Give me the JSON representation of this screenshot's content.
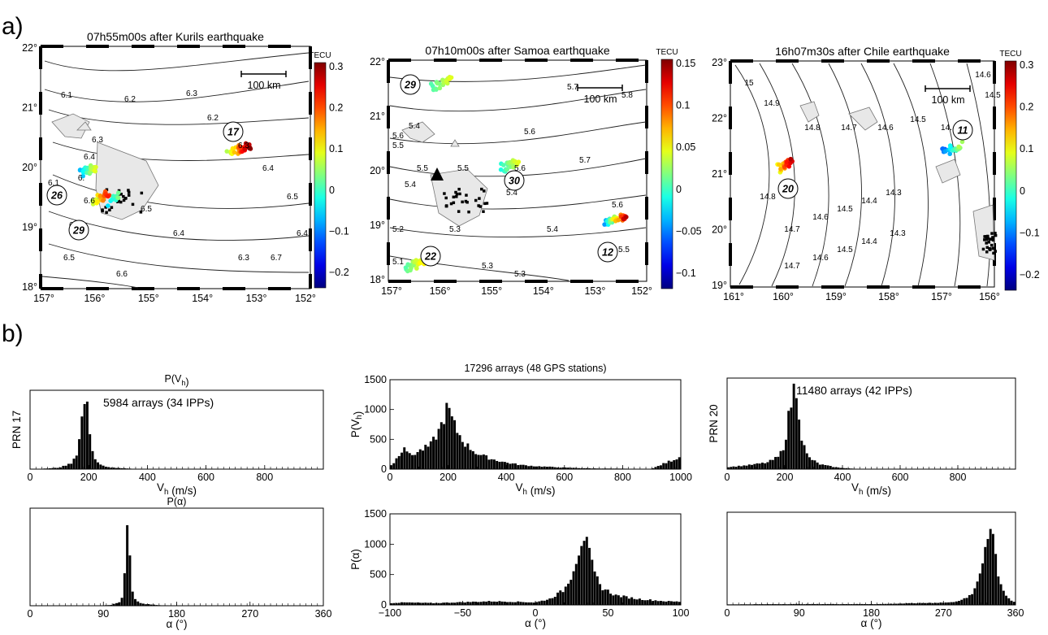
{
  "panel_labels": {
    "a": "a)",
    "b": "b)"
  },
  "maps": [
    {
      "title": "07h55m00s after Kurils earthquake",
      "scale_label": "100 km",
      "colorbar": {
        "label": "TECU",
        "ticks": [
          "0.3",
          "0.2",
          "0.1",
          "0",
          "−0.1",
          "−0.2"
        ]
      },
      "x_ticks": [
        "157°",
        "156°",
        "155°",
        "154°",
        "153°",
        "152°"
      ],
      "y_ticks": [
        "22°",
        "21°",
        "20°",
        "19°",
        "18°"
      ],
      "contour_labels": [
        "6.1",
        "6.2",
        "6.3",
        "6.2",
        "6.3",
        "6.4",
        "6.5",
        "6.4",
        "6.3",
        "6.4",
        "6.5",
        "6.6",
        "6.6",
        "6.5",
        "6.6",
        "6.7",
        "6.3",
        "6.4",
        "6.",
        "6.1"
      ],
      "prn_labels": [
        "17",
        "26",
        "29"
      ]
    },
    {
      "title": "07h10m00s after Samoa earthquake",
      "scale_label": "100 km",
      "colorbar": {
        "label": "TECU",
        "ticks": [
          "0.15",
          "0.1",
          "0.05",
          "0",
          "−0.05",
          "−0.1"
        ]
      },
      "x_ticks": [
        "157°",
        "156°",
        "155°",
        "154°",
        "153°",
        "152°"
      ],
      "y_ticks": [
        "22°",
        "21°",
        "20°",
        "19°",
        "18°"
      ],
      "contour_labels": [
        "5.7",
        "5.8",
        "5.6",
        "5.7",
        "5.6",
        "5.5",
        "5.6",
        "5.4",
        "5.5",
        "5.4",
        "5.5",
        "5.3",
        "5.4",
        "5.3",
        "5.2",
        "5.1",
        "5.3",
        "5.6",
        "5.5",
        "5.4"
      ],
      "prn_labels": [
        "29",
        "30",
        "12",
        "22"
      ]
    },
    {
      "title": "16h07m30s after Chile earthquake",
      "scale_label": "100 km",
      "colorbar": {
        "label": "TECU",
        "ticks": [
          "0.3",
          "0.2",
          "0.1",
          "0",
          "−0.1",
          "−0.2"
        ]
      },
      "x_ticks": [
        "161°",
        "160°",
        "159°",
        "158°",
        "157°",
        "156°"
      ],
      "y_ticks": [
        "23°",
        "22°",
        "21°",
        "20°",
        "19°"
      ],
      "contour_labels": [
        "15",
        "14.9",
        "14.8",
        "14.7",
        "14.6",
        "14.5",
        "14.4",
        "14.3",
        "14.7",
        "14.6",
        "14.5",
        "14.4",
        "14.3",
        "14.8",
        "14.7",
        "14.6",
        "14.5",
        "14.",
        "14.6",
        "14.5"
      ],
      "prn_labels": [
        "11",
        "20"
      ]
    }
  ],
  "b_texts": {
    "left_title": "P(V_h)",
    "left_ylabel": "PRN 17",
    "left_annotation": "5984 arrays (34 IPPs)",
    "left_alpha_title": "P(α)",
    "mid_title": "17296 arrays (48 GPS stations)",
    "right_ylabel": "PRN 20",
    "right_annotation": "11480 arrays (42 IPPs)",
    "vh_label": "V_h (m/s)",
    "alpha_label": "α (°)",
    "mid_vh_ylabel": "P(V_h)",
    "mid_alpha_ylabel": "P(α)"
  },
  "chart_data": [
    {
      "type": "bar",
      "title": "P(V_h)",
      "ylabel": "PRN 17",
      "xlabel": "V_h (m/s)",
      "annotation": "5984 arrays (34 IPPs)",
      "xlim": [
        0,
        1000
      ],
      "x_ticks": [
        0,
        200,
        400,
        600,
        800
      ],
      "y_ticks": [],
      "x": [
        100,
        140,
        160,
        170,
        180,
        190,
        200,
        210,
        220,
        240,
        260,
        300,
        350
      ],
      "values": [
        0.02,
        0.08,
        0.22,
        0.45,
        0.8,
        1.0,
        0.7,
        0.35,
        0.15,
        0.06,
        0.03,
        0.015,
        0.005
      ]
    },
    {
      "type": "bar",
      "title": "17296 arrays (48 GPS stations)",
      "ylabel": "P(V_h)",
      "xlabel": "V_h (m/s)",
      "xlim": [
        0,
        1000
      ],
      "ylim": [
        0,
        1500
      ],
      "x_ticks": [
        0,
        200,
        400,
        600,
        800,
        1000
      ],
      "y_ticks": [
        0,
        500,
        1000,
        1500
      ],
      "x": [
        10,
        30,
        50,
        70,
        100,
        140,
        170,
        190,
        200,
        210,
        230,
        260,
        300,
        350,
        400,
        450,
        500,
        600,
        700,
        800,
        900,
        995
      ],
      "values": [
        80,
        230,
        400,
        220,
        300,
        400,
        650,
        920,
        1060,
        870,
        650,
        420,
        260,
        170,
        110,
        70,
        50,
        25,
        12,
        8,
        5,
        200
      ]
    },
    {
      "type": "bar",
      "ylabel": "PRN 20",
      "xlabel": "V_h (m/s)",
      "annotation": "11480 arrays (42 IPPs)",
      "xlim": [
        0,
        1000
      ],
      "x_ticks": [
        0,
        200,
        400,
        600,
        800
      ],
      "y_ticks": [],
      "x": [
        20,
        80,
        140,
        180,
        200,
        210,
        220,
        230,
        240,
        250,
        260,
        280,
        320,
        380
      ],
      "values": [
        0.03,
        0.05,
        0.08,
        0.15,
        0.3,
        0.55,
        0.75,
        0.95,
        1.0,
        0.7,
        0.35,
        0.15,
        0.06,
        0.02
      ]
    },
    {
      "type": "bar",
      "title": "P(α)",
      "xlabel": "α (°)",
      "xlim": [
        0,
        360
      ],
      "x_ticks": [
        0,
        90,
        180,
        270,
        360
      ],
      "y_ticks": [],
      "x": [
        100,
        110,
        114,
        117,
        119,
        121,
        123,
        126,
        130,
        140,
        160
      ],
      "values": [
        0.01,
        0.04,
        0.12,
        0.4,
        0.85,
        1.0,
        0.45,
        0.15,
        0.05,
        0.02,
        0.005
      ]
    },
    {
      "type": "bar",
      "ylabel": "P(α)",
      "xlabel": "α (°)",
      "xlim": [
        -100,
        100
      ],
      "ylim": [
        0,
        1500
      ],
      "x_ticks": [
        -100,
        -50,
        0,
        50,
        100
      ],
      "y_ticks": [
        0,
        500,
        1000,
        1500
      ],
      "x": [
        -90,
        -70,
        -50,
        -30,
        -10,
        0,
        10,
        20,
        25,
        30,
        33,
        36,
        40,
        45,
        55,
        70,
        90
      ],
      "values": [
        40,
        30,
        45,
        60,
        50,
        40,
        100,
        250,
        500,
        900,
        1180,
        950,
        560,
        300,
        160,
        100,
        60
      ]
    },
    {
      "type": "bar",
      "xlabel": "α (°)",
      "xlim": [
        0,
        360
      ],
      "x_ticks": [
        0,
        90,
        180,
        270,
        360
      ],
      "y_ticks": [],
      "x": [
        80,
        190,
        280,
        300,
        310,
        318,
        324,
        328,
        332,
        336,
        340,
        348,
        356
      ],
      "values": [
        0.01,
        0.01,
        0.03,
        0.08,
        0.18,
        0.45,
        0.8,
        1.0,
        0.85,
        0.55,
        0.3,
        0.12,
        0.04
      ]
    }
  ]
}
